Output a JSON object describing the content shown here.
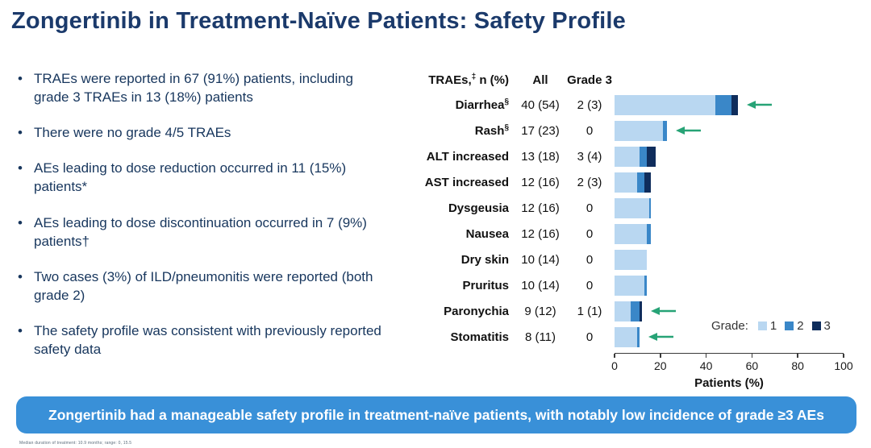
{
  "title": "Zongertinib in Treatment-Naïve Patients: Safety Profile",
  "bullets": [
    "TRAEs were reported in 67 (91%) patients, including grade 3 TRAEs in 13 (18%) patients",
    "There were no grade 4/5 TRAEs",
    "AEs leading to dose reduction occurred in 11 (15%) patients*",
    "AEs leading to dose discontinuation occurred in 7 (9%) patients†",
    "Two cases (3%) of ILD/pneumonitis were reported (both grade 2)",
    "The safety profile was consistent with previously reported safety data"
  ],
  "banner_text": "Zongertinib had a manageable safety profile in treatment-naïve patients, with notably low incidence of grade ≥3 AEs",
  "footnote": "Median duration of treatment: 10.9 months; range: 0, 15.5",
  "colors": {
    "title": "#1b3a6b",
    "bullet_text": "#17365d",
    "banner_bg": "#3990d8",
    "arrow_green": "#27a376",
    "grade1": "#b9d7f1",
    "grade2": "#3a87c8",
    "grade3": "#0f2d5c"
  },
  "chart_data": {
    "type": "bar",
    "orientation": "horizontal",
    "stacked": true,
    "title": "",
    "xlabel": "Patients (%)",
    "xlim": [
      0,
      100
    ],
    "xticks": [
      0,
      20,
      40,
      60,
      80,
      100
    ],
    "legend": {
      "title": "Grade:",
      "position": "bottom-right",
      "entries": [
        {
          "label": "1",
          "color": "#b9d7f1"
        },
        {
          "label": "2",
          "color": "#3a87c8"
        },
        {
          "label": "3",
          "color": "#0f2d5c"
        }
      ]
    },
    "table_header": {
      "name_prefix": "TRAEs,",
      "name_sup": "‡",
      "name_suffix": " n (%)",
      "all": "All",
      "grade3": "Grade 3"
    },
    "rows": [
      {
        "label": "Diarrhea",
        "sup": "§",
        "all": "40 (54)",
        "grade3": "2 (3)",
        "total_pct": 54,
        "segments": {
          "grade1": 44,
          "grade2": 7,
          "grade3": 3
        },
        "arrow": true
      },
      {
        "label": "Rash",
        "sup": "§",
        "all": "17 (23)",
        "grade3": "0",
        "total_pct": 23,
        "segments": {
          "grade1": 21,
          "grade2": 2,
          "grade3": 0
        },
        "arrow": true
      },
      {
        "label": "ALT increased",
        "sup": "",
        "all": "13 (18)",
        "grade3": "3 (4)",
        "total_pct": 18,
        "segments": {
          "grade1": 11,
          "grade2": 3,
          "grade3": 4
        },
        "arrow": false
      },
      {
        "label": "AST increased",
        "sup": "",
        "all": "12 (16)",
        "grade3": "2 (3)",
        "total_pct": 16,
        "segments": {
          "grade1": 10,
          "grade2": 3,
          "grade3": 3
        },
        "arrow": false
      },
      {
        "label": "Dysgeusia",
        "sup": "",
        "all": "12 (16)",
        "grade3": "0",
        "total_pct": 16,
        "segments": {
          "grade1": 15,
          "grade2": 1,
          "grade3": 0
        },
        "arrow": false
      },
      {
        "label": "Nausea",
        "sup": "",
        "all": "12 (16)",
        "grade3": "0",
        "total_pct": 16,
        "segments": {
          "grade1": 14,
          "grade2": 2,
          "grade3": 0
        },
        "arrow": false
      },
      {
        "label": "Dry skin",
        "sup": "",
        "all": "10 (14)",
        "grade3": "0",
        "total_pct": 14,
        "segments": {
          "grade1": 14,
          "grade2": 0,
          "grade3": 0
        },
        "arrow": false
      },
      {
        "label": "Pruritus",
        "sup": "",
        "all": "10 (14)",
        "grade3": "0",
        "total_pct": 14,
        "segments": {
          "grade1": 13,
          "grade2": 1,
          "grade3": 0
        },
        "arrow": false
      },
      {
        "label": "Paronychia",
        "sup": "",
        "all": "9 (12)",
        "grade3": "1 (1)",
        "total_pct": 12,
        "segments": {
          "grade1": 7,
          "grade2": 4,
          "grade3": 1
        },
        "arrow": true
      },
      {
        "label": "Stomatitis",
        "sup": "",
        "all": "8 (11)",
        "grade3": "0",
        "total_pct": 11,
        "segments": {
          "grade1": 10,
          "grade2": 1,
          "grade3": 0
        },
        "arrow": true
      }
    ]
  }
}
